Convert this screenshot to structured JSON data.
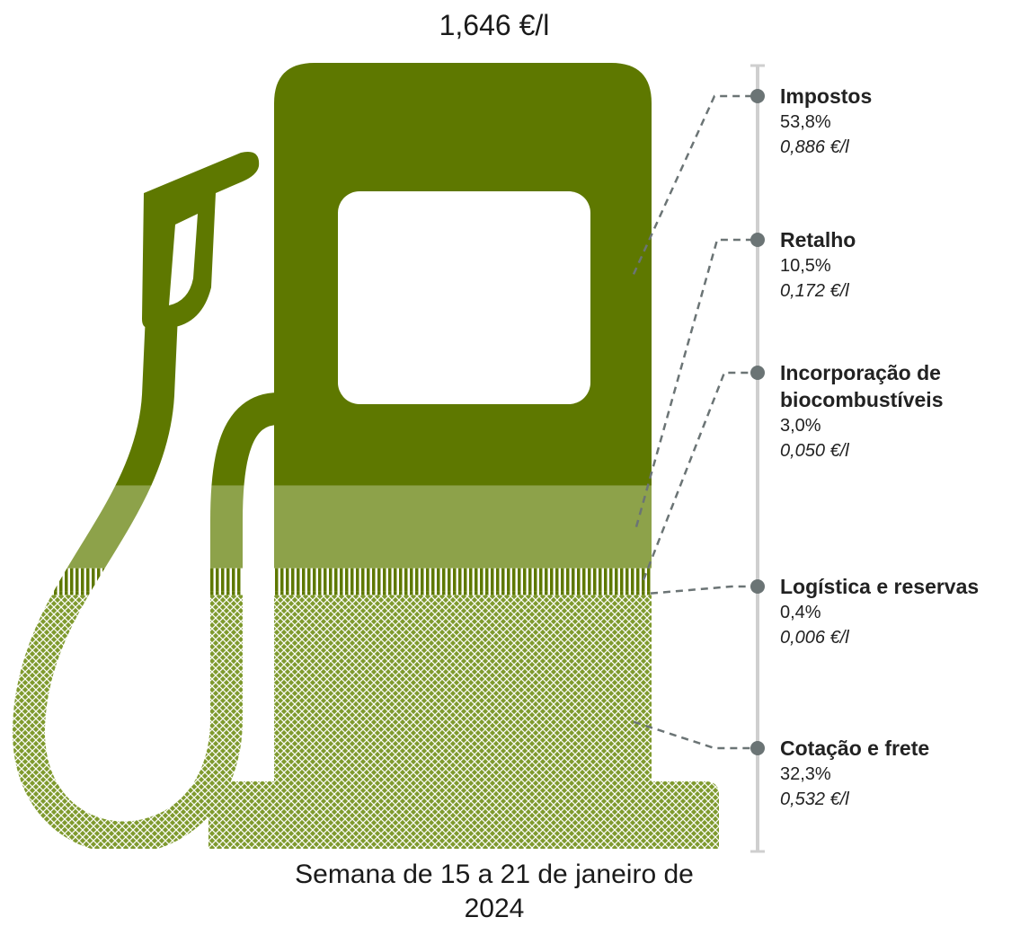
{
  "chart_data": {
    "type": "stacked-pump",
    "title": "1,646 €/l",
    "caption": "Semana de 15 a 21 de janeiro de 2024",
    "categories": [
      "Impostos",
      "Retalho",
      "Incorporação de biocombustíveis",
      "Logística e reservas",
      "Cotação e frete"
    ],
    "values": [
      53.8,
      10.5,
      3.0,
      0.4,
      32.3
    ],
    "value_labels": [
      "53,8%",
      "10,5%",
      "3,0%",
      "0,4%",
      "32,3%"
    ],
    "prices": [
      0.886,
      0.172,
      0.05,
      0.006,
      0.532
    ],
    "price_labels": [
      "0,886 €/l",
      "0,172 €/l",
      "0,050 €/l",
      "0,006 €/l",
      "0,532 €/l"
    ],
    "colors": [
      "#5e7800",
      "#8da24a",
      "#7f9a2e",
      "#7f9a2e",
      "#7f9a2e"
    ]
  }
}
